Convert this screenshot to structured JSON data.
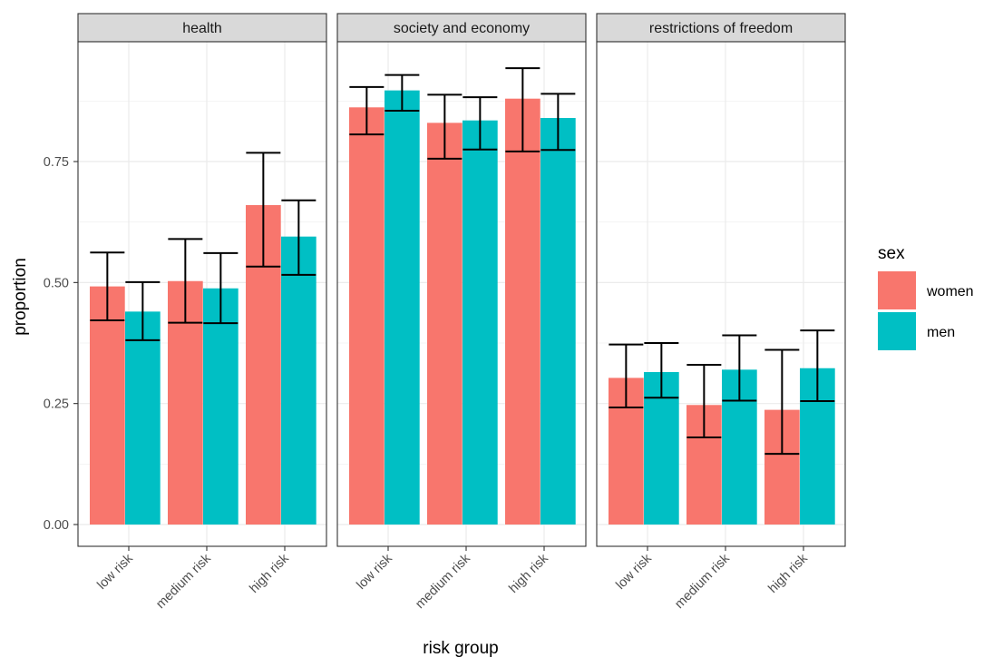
{
  "chart_data": {
    "type": "bar",
    "xlabel": "risk group",
    "ylabel": "proportion",
    "ylim": [
      0,
      0.985
    ],
    "y_ticks": [
      "0.00",
      "0.25",
      "0.50",
      "0.75"
    ],
    "categories": [
      "low risk",
      "medium risk",
      "high risk"
    ],
    "grid": true,
    "legend": {
      "title": "sex",
      "placement": "right",
      "entries": [
        {
          "name": "women",
          "color": "#F8766D"
        },
        {
          "name": "men",
          "color": "#00BFC4"
        }
      ]
    },
    "panels": [
      {
        "title": "health",
        "series": [
          {
            "name": "women",
            "values": [
              0.492,
              0.503,
              0.66
            ],
            "err_low": [
              0.422,
              0.417,
              0.533
            ],
            "err_high": [
              0.562,
              0.59,
              0.768
            ]
          },
          {
            "name": "men",
            "values": [
              0.44,
              0.488,
              0.595
            ],
            "err_low": [
              0.381,
              0.416,
              0.516
            ],
            "err_high": [
              0.501,
              0.561,
              0.67
            ]
          }
        ]
      },
      {
        "title": "society and economy",
        "series": [
          {
            "name": "women",
            "values": [
              0.862,
              0.83,
              0.88
            ],
            "err_low": [
              0.806,
              0.756,
              0.771
            ],
            "err_high": [
              0.904,
              0.888,
              0.943
            ]
          },
          {
            "name": "men",
            "values": [
              0.897,
              0.835,
              0.84
            ],
            "err_low": [
              0.855,
              0.775,
              0.774
            ],
            "err_high": [
              0.929,
              0.883,
              0.89
            ]
          }
        ]
      },
      {
        "title": "restrictions of freedom",
        "series": [
          {
            "name": "women",
            "values": [
              0.303,
              0.247,
              0.237
            ],
            "err_low": [
              0.242,
              0.18,
              0.146
            ],
            "err_high": [
              0.372,
              0.33,
              0.361
            ]
          },
          {
            "name": "men",
            "values": [
              0.315,
              0.32,
              0.323
            ],
            "err_low": [
              0.262,
              0.256,
              0.255
            ],
            "err_high": [
              0.375,
              0.391,
              0.401
            ]
          }
        ]
      }
    ]
  }
}
